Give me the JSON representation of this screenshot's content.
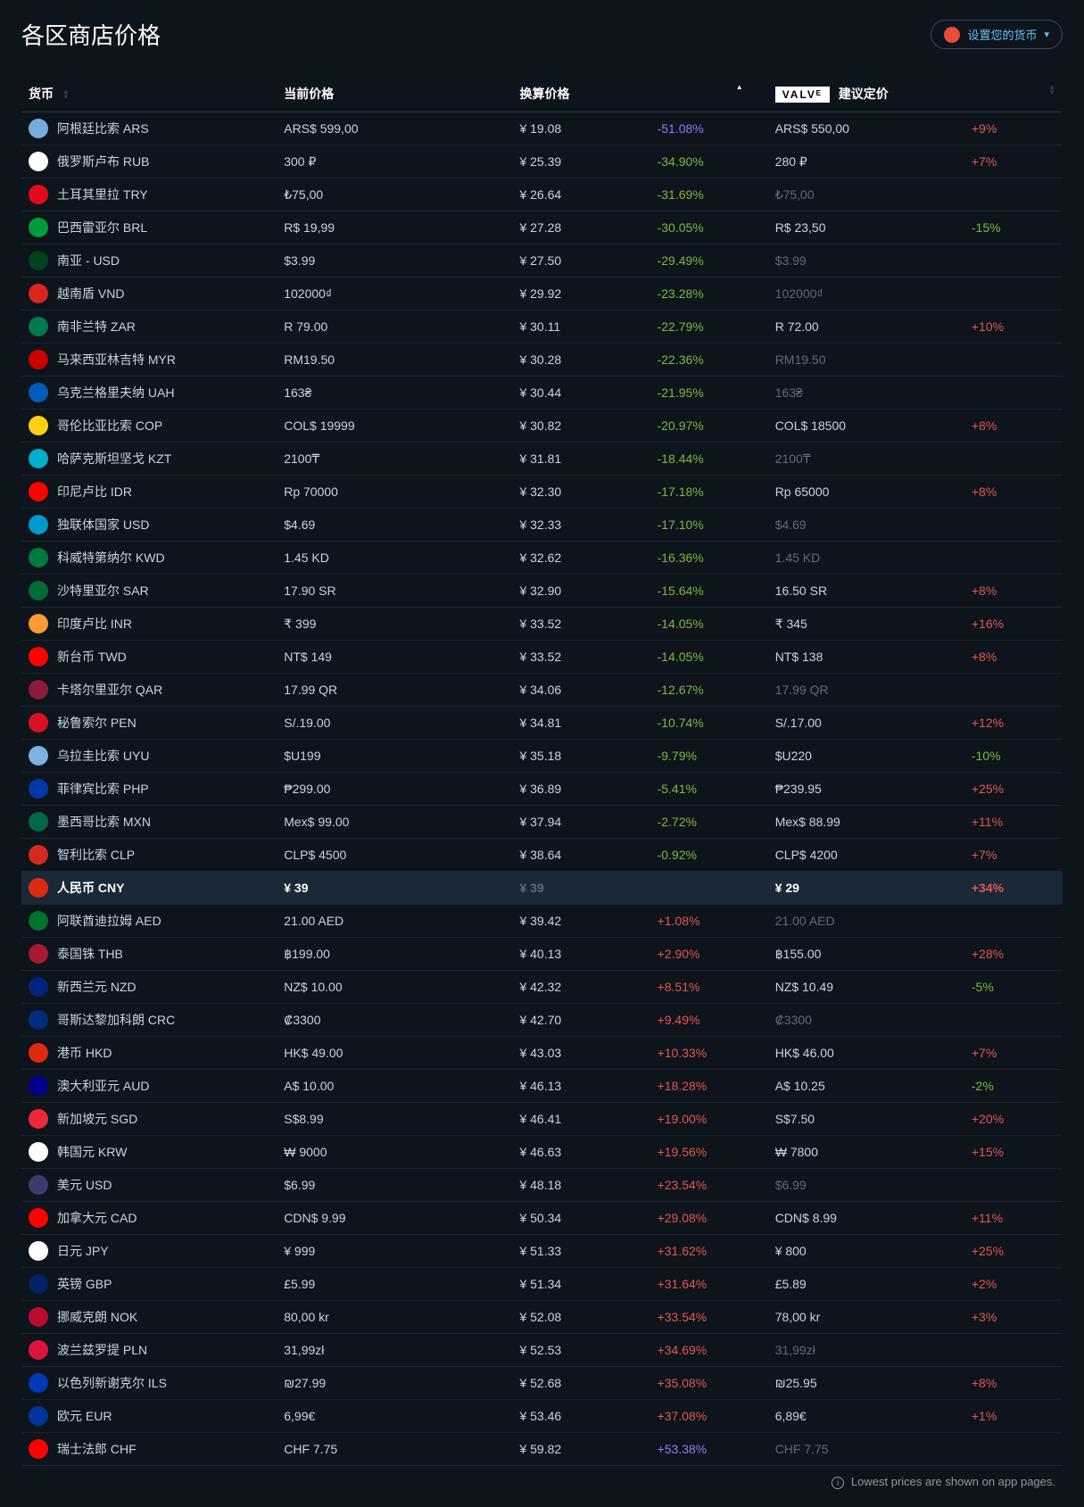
{
  "title": "各区商店价格",
  "set_currency_label": "设置您的货币",
  "set_currency_flag_color": "#e74c3c",
  "columns": {
    "currency": "货币",
    "current_price": "当前价格",
    "converted_price": "换算价格",
    "suggested_price": "建议定价",
    "valve_badge": "VALVᴱ"
  },
  "footer_note": "Lowest prices are shown on app pages.",
  "colors": {
    "pct_green": "#7fb93e",
    "pct_red": "#e2584d",
    "pct_purple": "#8a7cff",
    "dim": "#5c6b7a",
    "text": "#c7d5e0"
  },
  "rows": [
    {
      "flag": "#74acdf",
      "name": "阿根廷比索 ARS",
      "current": "ARS$ 599,00",
      "conv": "¥ 19.08",
      "pct": "-51.08%",
      "pct_c": "purple",
      "sugg": "ARS$ 550,00",
      "sugg_dim": false,
      "sugg_pct": "+9%",
      "sugg_pct_c": "red"
    },
    {
      "flag": "#ffffff",
      "name": "俄罗斯卢布 RUB",
      "current": "300 ₽",
      "conv": "¥ 25.39",
      "pct": "-34.90%",
      "pct_c": "green",
      "sugg": "280 ₽",
      "sugg_dim": false,
      "sugg_pct": "+7%",
      "sugg_pct_c": "red"
    },
    {
      "flag": "#e30a17",
      "name": "土耳其里拉 TRY",
      "current": "₺75,00",
      "conv": "¥ 26.64",
      "pct": "-31.69%",
      "pct_c": "green",
      "sugg": "₺75,00",
      "sugg_dim": true,
      "sugg_pct": "",
      "sugg_pct_c": ""
    },
    {
      "flag": "#009c3b",
      "name": "巴西雷亚尔 BRL",
      "current": "R$ 19,99",
      "conv": "¥ 27.28",
      "pct": "-30.05%",
      "pct_c": "green",
      "sugg": "R$ 23,50",
      "sugg_dim": false,
      "sugg_pct": "-15%",
      "sugg_pct_c": "green"
    },
    {
      "flag": "#01411c",
      "name": "南亚 - USD",
      "current": "$3.99",
      "conv": "¥ 27.50",
      "pct": "-29.49%",
      "pct_c": "green",
      "sugg": "$3.99",
      "sugg_dim": true,
      "sugg_pct": "",
      "sugg_pct_c": ""
    },
    {
      "flag": "#da251d",
      "name": "越南盾 VND",
      "current": "102000₫",
      "conv": "¥ 29.92",
      "pct": "-23.28%",
      "pct_c": "green",
      "sugg": "102000₫",
      "sugg_dim": true,
      "sugg_pct": "",
      "sugg_pct_c": ""
    },
    {
      "flag": "#007a4d",
      "name": "南非兰特 ZAR",
      "current": "R 79.00",
      "conv": "¥ 30.11",
      "pct": "-22.79%",
      "pct_c": "green",
      "sugg": "R 72.00",
      "sugg_dim": false,
      "sugg_pct": "+10%",
      "sugg_pct_c": "red"
    },
    {
      "flag": "#cc0001",
      "name": "马来西亚林吉特 MYR",
      "current": "RM19.50",
      "conv": "¥ 30.28",
      "pct": "-22.36%",
      "pct_c": "green",
      "sugg": "RM19.50",
      "sugg_dim": true,
      "sugg_pct": "",
      "sugg_pct_c": ""
    },
    {
      "flag": "#005bbb",
      "name": "乌克兰格里夫纳 UAH",
      "current": "163₴",
      "conv": "¥ 30.44",
      "pct": "-21.95%",
      "pct_c": "green",
      "sugg": "163₴",
      "sugg_dim": true,
      "sugg_pct": "",
      "sugg_pct_c": ""
    },
    {
      "flag": "#fcd116",
      "name": "哥伦比亚比索 COP",
      "current": "COL$ 19999",
      "conv": "¥ 30.82",
      "pct": "-20.97%",
      "pct_c": "green",
      "sugg": "COL$ 18500",
      "sugg_dim": false,
      "sugg_pct": "+8%",
      "sugg_pct_c": "red"
    },
    {
      "flag": "#00afca",
      "name": "哈萨克斯坦坚戈 KZT",
      "current": "2100₸",
      "conv": "¥ 31.81",
      "pct": "-18.44%",
      "pct_c": "green",
      "sugg": "2100₸",
      "sugg_dim": true,
      "sugg_pct": "",
      "sugg_pct_c": ""
    },
    {
      "flag": "#ff0000",
      "name": "印尼卢比 IDR",
      "current": "Rp 70000",
      "conv": "¥ 32.30",
      "pct": "-17.18%",
      "pct_c": "green",
      "sugg": "Rp 65000",
      "sugg_dim": false,
      "sugg_pct": "+8%",
      "sugg_pct_c": "red"
    },
    {
      "flag": "#0099cc",
      "name": "独联体国家 USD",
      "current": "$4.69",
      "conv": "¥ 32.33",
      "pct": "-17.10%",
      "pct_c": "green",
      "sugg": "$4.69",
      "sugg_dim": true,
      "sugg_pct": "",
      "sugg_pct_c": ""
    },
    {
      "flag": "#007a3d",
      "name": "科威特第纳尔 KWD",
      "current": "1.45 KD",
      "conv": "¥ 32.62",
      "pct": "-16.36%",
      "pct_c": "green",
      "sugg": "1.45 KD",
      "sugg_dim": true,
      "sugg_pct": "",
      "sugg_pct_c": ""
    },
    {
      "flag": "#006c35",
      "name": "沙特里亚尔 SAR",
      "current": "17.90 SR",
      "conv": "¥ 32.90",
      "pct": "-15.64%",
      "pct_c": "green",
      "sugg": "16.50 SR",
      "sugg_dim": false,
      "sugg_pct": "+8%",
      "sugg_pct_c": "red"
    },
    {
      "flag": "#ff9933",
      "name": "印度卢比 INR",
      "current": "₹ 399",
      "conv": "¥ 33.52",
      "pct": "-14.05%",
      "pct_c": "green",
      "sugg": "₹ 345",
      "sugg_dim": false,
      "sugg_pct": "+16%",
      "sugg_pct_c": "red"
    },
    {
      "flag": "#fe0000",
      "name": "新台币 TWD",
      "current": "NT$ 149",
      "conv": "¥ 33.52",
      "pct": "-14.05%",
      "pct_c": "green",
      "sugg": "NT$ 138",
      "sugg_dim": false,
      "sugg_pct": "+8%",
      "sugg_pct_c": "red"
    },
    {
      "flag": "#8d1b3d",
      "name": "卡塔尔里亚尔 QAR",
      "current": "17.99 QR",
      "conv": "¥ 34.06",
      "pct": "-12.67%",
      "pct_c": "green",
      "sugg": "17.99 QR",
      "sugg_dim": true,
      "sugg_pct": "",
      "sugg_pct_c": ""
    },
    {
      "flag": "#d91023",
      "name": "秘鲁索尔 PEN",
      "current": "S/.19.00",
      "conv": "¥ 34.81",
      "pct": "-10.74%",
      "pct_c": "green",
      "sugg": "S/.17.00",
      "sugg_dim": false,
      "sugg_pct": "+12%",
      "sugg_pct_c": "red"
    },
    {
      "flag": "#7ab2e0",
      "name": "乌拉圭比索 UYU",
      "current": "$U199",
      "conv": "¥ 35.18",
      "pct": "-9.79%",
      "pct_c": "green",
      "sugg": "$U220",
      "sugg_dim": false,
      "sugg_pct": "-10%",
      "sugg_pct_c": "green"
    },
    {
      "flag": "#0038a8",
      "name": "菲律宾比索 PHP",
      "current": "₱299.00",
      "conv": "¥ 36.89",
      "pct": "-5.41%",
      "pct_c": "green",
      "sugg": "₱239.95",
      "sugg_dim": false,
      "sugg_pct": "+25%",
      "sugg_pct_c": "red"
    },
    {
      "flag": "#006847",
      "name": "墨西哥比索 MXN",
      "current": "Mex$ 99.00",
      "conv": "¥ 37.94",
      "pct": "-2.72%",
      "pct_c": "green",
      "sugg": "Mex$ 88.99",
      "sugg_dim": false,
      "sugg_pct": "+11%",
      "sugg_pct_c": "red"
    },
    {
      "flag": "#d52b1e",
      "name": "智利比索 CLP",
      "current": "CLP$ 4500",
      "conv": "¥ 38.64",
      "pct": "-0.92%",
      "pct_c": "green",
      "sugg": "CLP$ 4200",
      "sugg_dim": false,
      "sugg_pct": "+7%",
      "sugg_pct_c": "red"
    },
    {
      "flag": "#de2910",
      "name": "人民币 CNY",
      "current": "¥ 39",
      "conv": "¥ 39",
      "pct": "",
      "pct_c": "",
      "sugg": "¥ 29",
      "sugg_dim": false,
      "sugg_pct": "+34%",
      "sugg_pct_c": "red",
      "highlight": true,
      "conv_dim": true
    },
    {
      "flag": "#00732f",
      "name": "阿联酋迪拉姆 AED",
      "current": "21.00 AED",
      "conv": "¥ 39.42",
      "pct": "+1.08%",
      "pct_c": "red",
      "sugg": "21.00 AED",
      "sugg_dim": true,
      "sugg_pct": "",
      "sugg_pct_c": ""
    },
    {
      "flag": "#a51931",
      "name": "泰国铢 THB",
      "current": "฿199.00",
      "conv": "¥ 40.13",
      "pct": "+2.90%",
      "pct_c": "red",
      "sugg": "฿155.00",
      "sugg_dim": false,
      "sugg_pct": "+28%",
      "sugg_pct_c": "red"
    },
    {
      "flag": "#00247d",
      "name": "新西兰元 NZD",
      "current": "NZ$ 10.00",
      "conv": "¥ 42.32",
      "pct": "+8.51%",
      "pct_c": "red",
      "sugg": "NZ$ 10.49",
      "sugg_dim": false,
      "sugg_pct": "-5%",
      "sugg_pct_c": "green"
    },
    {
      "flag": "#002b7f",
      "name": "哥斯达黎加科朗 CRC",
      "current": "₡3300",
      "conv": "¥ 42.70",
      "pct": "+9.49%",
      "pct_c": "red",
      "sugg": "₡3300",
      "sugg_dim": true,
      "sugg_pct": "",
      "sugg_pct_c": ""
    },
    {
      "flag": "#de2910",
      "name": "港币 HKD",
      "current": "HK$ 49.00",
      "conv": "¥ 43.03",
      "pct": "+10.33%",
      "pct_c": "red",
      "sugg": "HK$ 46.00",
      "sugg_dim": false,
      "sugg_pct": "+7%",
      "sugg_pct_c": "red"
    },
    {
      "flag": "#00008b",
      "name": "澳大利亚元 AUD",
      "current": "A$ 10.00",
      "conv": "¥ 46.13",
      "pct": "+18.28%",
      "pct_c": "red",
      "sugg": "A$ 10.25",
      "sugg_dim": false,
      "sugg_pct": "-2%",
      "sugg_pct_c": "green"
    },
    {
      "flag": "#ed2939",
      "name": "新加坡元 SGD",
      "current": "S$8.99",
      "conv": "¥ 46.41",
      "pct": "+19.00%",
      "pct_c": "red",
      "sugg": "S$7.50",
      "sugg_dim": false,
      "sugg_pct": "+20%",
      "sugg_pct_c": "red"
    },
    {
      "flag": "#ffffff",
      "name": "韩国元 KRW",
      "current": "₩ 9000",
      "conv": "¥ 46.63",
      "pct": "+19.56%",
      "pct_c": "red",
      "sugg": "₩ 7800",
      "sugg_dim": false,
      "sugg_pct": "+15%",
      "sugg_pct_c": "red"
    },
    {
      "flag": "#3c3b6e",
      "name": "美元 USD",
      "current": "$6.99",
      "conv": "¥ 48.18",
      "pct": "+23.54%",
      "pct_c": "red",
      "sugg": "$6.99",
      "sugg_dim": true,
      "sugg_pct": "",
      "sugg_pct_c": ""
    },
    {
      "flag": "#ff0000",
      "name": "加拿大元 CAD",
      "current": "CDN$ 9.99",
      "conv": "¥ 50.34",
      "pct": "+29.08%",
      "pct_c": "red",
      "sugg": "CDN$ 8.99",
      "sugg_dim": false,
      "sugg_pct": "+11%",
      "sugg_pct_c": "red"
    },
    {
      "flag": "#ffffff",
      "name": "日元 JPY",
      "current": "¥ 999",
      "conv": "¥ 51.33",
      "pct": "+31.62%",
      "pct_c": "red",
      "sugg": "¥ 800",
      "sugg_dim": false,
      "sugg_pct": "+25%",
      "sugg_pct_c": "red"
    },
    {
      "flag": "#012169",
      "name": "英镑 GBP",
      "current": "£5.99",
      "conv": "¥ 51.34",
      "pct": "+31.64%",
      "pct_c": "red",
      "sugg": "£5.89",
      "sugg_dim": false,
      "sugg_pct": "+2%",
      "sugg_pct_c": "red"
    },
    {
      "flag": "#ba0c2f",
      "name": "挪威克朗 NOK",
      "current": "80,00 kr",
      "conv": "¥ 52.08",
      "pct": "+33.54%",
      "pct_c": "red",
      "sugg": "78,00 kr",
      "sugg_dim": false,
      "sugg_pct": "+3%",
      "sugg_pct_c": "red"
    },
    {
      "flag": "#dc143c",
      "name": "波兰兹罗提 PLN",
      "current": "31,99zł",
      "conv": "¥ 52.53",
      "pct": "+34.69%",
      "pct_c": "red",
      "sugg": "31,99zł",
      "sugg_dim": true,
      "sugg_pct": "",
      "sugg_pct_c": ""
    },
    {
      "flag": "#0038b8",
      "name": "以色列新谢克尔 ILS",
      "current": "₪27.99",
      "conv": "¥ 52.68",
      "pct": "+35.08%",
      "pct_c": "red",
      "sugg": "₪25.95",
      "sugg_dim": false,
      "sugg_pct": "+8%",
      "sugg_pct_c": "red"
    },
    {
      "flag": "#003399",
      "name": "欧元 EUR",
      "current": "6,99€",
      "conv": "¥ 53.46",
      "pct": "+37.08%",
      "pct_c": "red",
      "sugg": "6,89€",
      "sugg_dim": false,
      "sugg_pct": "+1%",
      "sugg_pct_c": "red"
    },
    {
      "flag": "#ff0000",
      "name": "瑞士法郎 CHF",
      "current": "CHF 7.75",
      "conv": "¥ 59.82",
      "pct": "+53.38%",
      "pct_c": "purple",
      "sugg": "CHF 7.75",
      "sugg_dim": true,
      "sugg_pct": "",
      "sugg_pct_c": ""
    }
  ]
}
